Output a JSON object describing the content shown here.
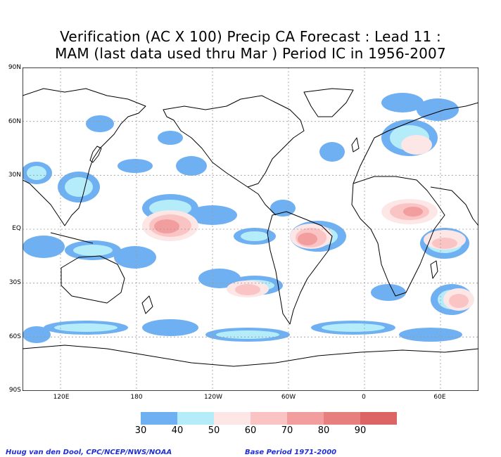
{
  "title_line1": "Verification (AC X 100) Precip CA Forecast : Lead 11 :",
  "title_line2": "MAM (last data used thru Mar ) Period IC in 1956-2007",
  "lat_labels": [
    "90N",
    "60N",
    "30N",
    "EQ",
    "30S",
    "60S",
    "90S"
  ],
  "lon_labels": [
    "120E",
    "180",
    "120W",
    "60W",
    "0",
    "60E"
  ],
  "colorbar": {
    "ticks": [
      "30",
      "40",
      "50",
      "60",
      "70",
      "80",
      "90"
    ],
    "colors": [
      "#6fb0f2",
      "#b4ecfa",
      "#fde6e6",
      "#fbc4c4",
      "#f29e9e",
      "#e87f7f",
      "#dc6464"
    ]
  },
  "credit": "Huug van den Dool, CPC/NCEP/NWS/NOAA",
  "base_period": "Base Period 1971-2000"
}
